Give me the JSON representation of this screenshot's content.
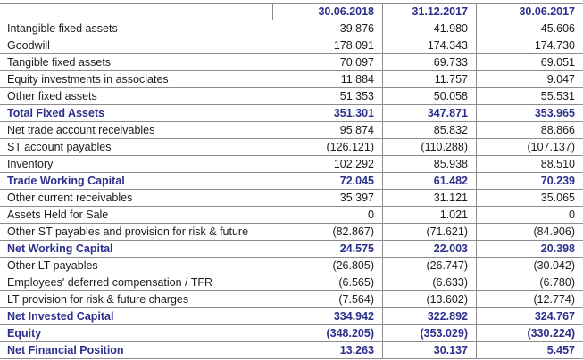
{
  "table": {
    "columns": [
      "",
      "30.06.2018",
      "31.12.2017",
      "30.06.2017"
    ],
    "colors": {
      "highlight_text": "#2d2f8c",
      "body_text": "#1c1c1c",
      "border": "#8c8c8c"
    },
    "rows": [
      {
        "label": "Intangible fixed assets",
        "values": [
          "39.876",
          "41.980",
          "45.606"
        ],
        "bold": false
      },
      {
        "label": "Goodwill",
        "values": [
          "178.091",
          "174.343",
          "174.730"
        ],
        "bold": false
      },
      {
        "label": "Tangible fixed assets",
        "values": [
          "70.097",
          "69.733",
          "69.051"
        ],
        "bold": false
      },
      {
        "label": "Equity investments in associates",
        "values": [
          "11.884",
          "11.757",
          "9.047"
        ],
        "bold": false
      },
      {
        "label": "Other fixed assets",
        "values": [
          "51.353",
          "50.058",
          "55.531"
        ],
        "bold": false
      },
      {
        "label": "Total Fixed Assets",
        "values": [
          "351.301",
          "347.871",
          "353.965"
        ],
        "bold": true
      },
      {
        "label": "Net trade account receivables",
        "values": [
          "95.874",
          "85.832",
          "88.866"
        ],
        "bold": false
      },
      {
        "label": "ST account payables",
        "values": [
          "(126.121)",
          "(110.288)",
          "(107.137)"
        ],
        "bold": false
      },
      {
        "label": "Inventory",
        "values": [
          "102.292",
          "85.938",
          "88.510"
        ],
        "bold": false
      },
      {
        "label": "Trade Working Capital",
        "values": [
          "72.045",
          "61.482",
          "70.239"
        ],
        "bold": true
      },
      {
        "label": "Other current receivables",
        "values": [
          "35.397",
          "31.121",
          "35.065"
        ],
        "bold": false
      },
      {
        "label": "Assets Held for Sale",
        "values": [
          "0",
          "1.021",
          "0"
        ],
        "bold": false
      },
      {
        "label": "Other ST payables and provision for risk & future",
        "values": [
          "(82.867)",
          "(71.621)",
          "(84.906)"
        ],
        "bold": false
      },
      {
        "label": "Net Working Capital",
        "values": [
          "24.575",
          "22.003",
          "20.398"
        ],
        "bold": true
      },
      {
        "label": "Other LT payables",
        "values": [
          "(26.805)",
          "(26.747)",
          "(30.042)"
        ],
        "bold": false
      },
      {
        "label": "Employees' deferred compensation / TFR",
        "values": [
          "(6.565)",
          "(6.633)",
          "(6.780)"
        ],
        "bold": false
      },
      {
        "label": "LT provision for risk & future charges",
        "values": [
          "(7.564)",
          "(13.602)",
          "(12.774)"
        ],
        "bold": false
      },
      {
        "label": "Net Invested Capital",
        "values": [
          "334.942",
          "322.892",
          "324.767"
        ],
        "bold": true
      },
      {
        "label": "Equity",
        "values": [
          "(348.205)",
          "(353.029)",
          "(330.224)"
        ],
        "bold": true
      },
      {
        "label": "Net Financial Position",
        "values": [
          "13.263",
          "30.137",
          "5.457"
        ],
        "bold": true
      }
    ]
  }
}
